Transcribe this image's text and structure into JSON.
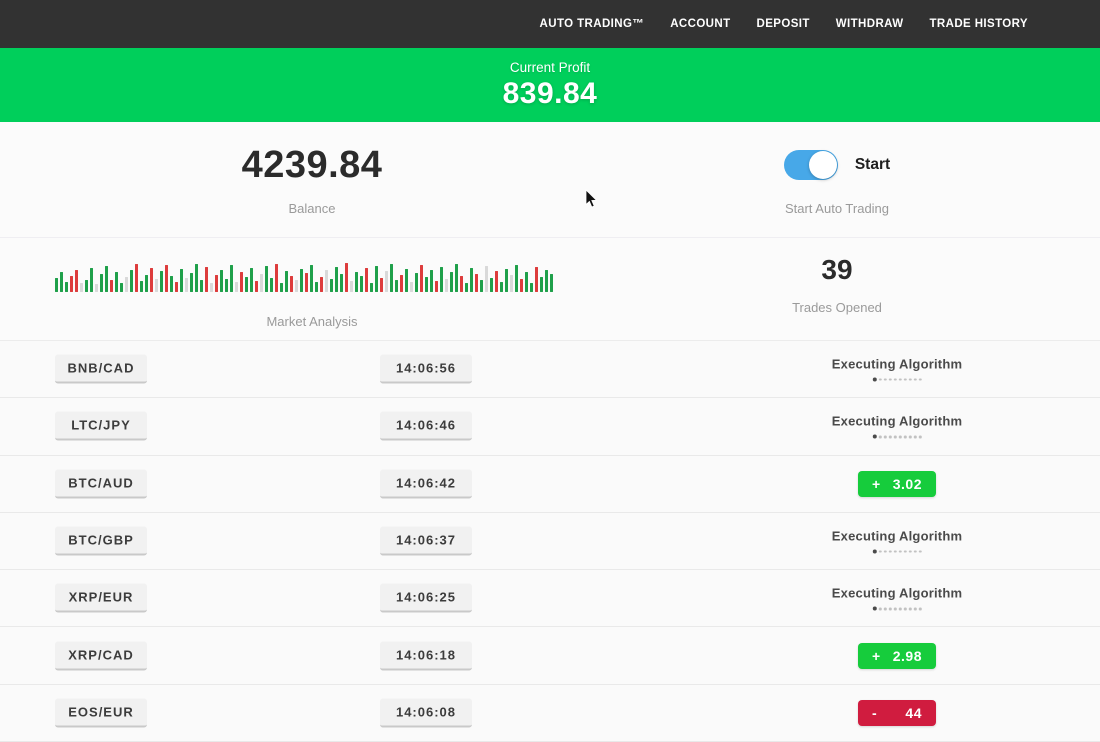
{
  "colors": {
    "nav_bg": "#323232",
    "banner_green": "#00cf5b",
    "badge_green": "#16cc3c",
    "badge_red": "#d01c3f",
    "toggle_blue": "#47a8e8",
    "bar_green": "#1fa04a",
    "bar_red": "#dd3c3c",
    "bar_gray": "#d9d9d9"
  },
  "nav": {
    "items": [
      {
        "id": "auto-trading",
        "label": "AUTO TRADING™"
      },
      {
        "id": "account",
        "label": "ACCOUNT"
      },
      {
        "id": "deposit",
        "label": "DEPOSIT"
      },
      {
        "id": "withdraw",
        "label": "WITHDRAW"
      },
      {
        "id": "trade-history",
        "label": "TRADE HISTORY"
      }
    ]
  },
  "banner": {
    "label": "Current Profit",
    "value": "839.84"
  },
  "stats": {
    "balance_value": "4239.84",
    "balance_label": "Balance",
    "toggle_label": "Start",
    "toggle_state": "on",
    "toggle_sublabel": "Start Auto Trading",
    "market_label": "Market Analysis",
    "trades_value": "39",
    "trades_label": "Trades Opened"
  },
  "market": {
    "bars": [
      "14g",
      "20g",
      "10g",
      "16r",
      "22r",
      "9x",
      "12g",
      "24g",
      "8x",
      "18g",
      "26g",
      "12r",
      "20g",
      "9g",
      "15x",
      "22g",
      "28r",
      "11g",
      "17g",
      "24r",
      "13x",
      "21g",
      "27r",
      "16g",
      "10r",
      "23g",
      "14x",
      "19g",
      "28g",
      "12g",
      "25r",
      "9x",
      "17r",
      "22g",
      "13g",
      "27g",
      "10x",
      "20r",
      "15g",
      "24g",
      "11r",
      "18x",
      "26g",
      "14g",
      "28r",
      "9g",
      "21g",
      "16r",
      "12x",
      "23g",
      "19r",
      "27g",
      "10g",
      "15r",
      "22x",
      "13g",
      "25g",
      "18g",
      "29r",
      "11x",
      "20g",
      "16g",
      "24r",
      "9g",
      "26g",
      "14r",
      "21x",
      "28g",
      "12g",
      "17r",
      "23g",
      "10x",
      "19g",
      "27r",
      "15g",
      "22g",
      "11r",
      "25g",
      "13x",
      "20g",
      "28g",
      "16r",
      "9g",
      "24g",
      "18r",
      "12g",
      "26x",
      "14g",
      "21r",
      "10g",
      "23g",
      "17x",
      "27g",
      "13r",
      "20g",
      "9g",
      "25r",
      "15g",
      "22g",
      "18g"
    ]
  },
  "trades": {
    "executing_label": "Executing Algorithm",
    "rows": [
      {
        "pair": "BNB/CAD",
        "time": "14:06:56",
        "status": "executing",
        "sign": "",
        "value": ""
      },
      {
        "pair": "LTC/JPY",
        "time": "14:06:46",
        "status": "executing",
        "sign": "",
        "value": ""
      },
      {
        "pair": "BTC/AUD",
        "time": "14:06:42",
        "status": "profit",
        "sign": "+",
        "value": "3.02"
      },
      {
        "pair": "BTC/GBP",
        "time": "14:06:37",
        "status": "executing",
        "sign": "",
        "value": ""
      },
      {
        "pair": "XRP/EUR",
        "time": "14:06:25",
        "status": "executing",
        "sign": "",
        "value": ""
      },
      {
        "pair": "XRP/CAD",
        "time": "14:06:18",
        "status": "profit",
        "sign": "+",
        "value": "2.98"
      },
      {
        "pair": "EOS/EUR",
        "time": "14:06:08",
        "status": "loss",
        "sign": "-",
        "value": "44"
      }
    ]
  }
}
